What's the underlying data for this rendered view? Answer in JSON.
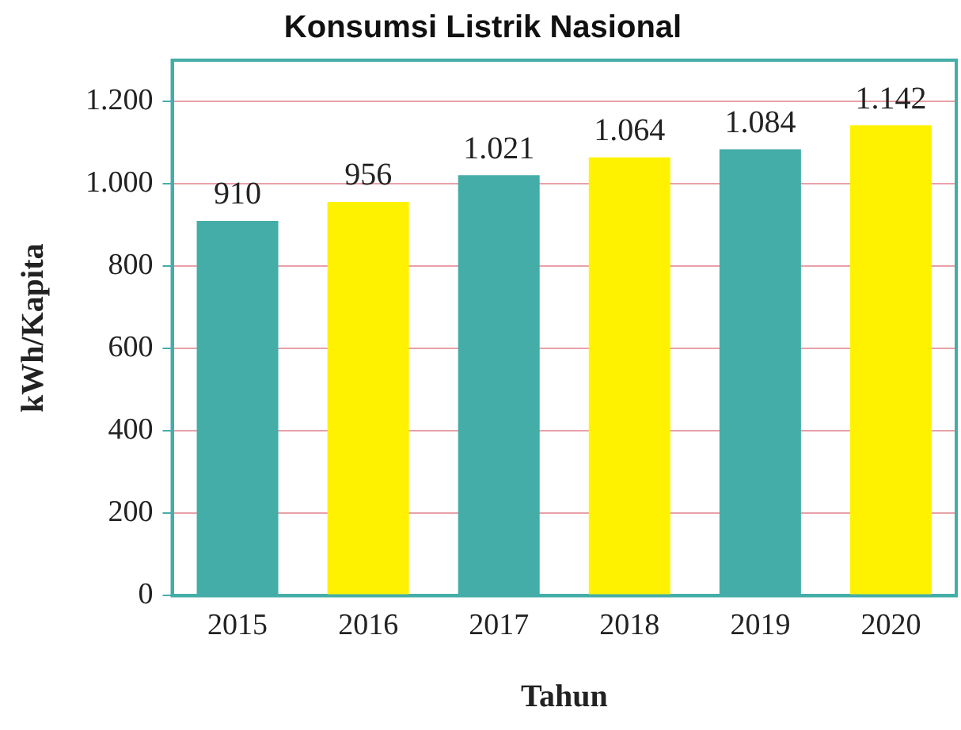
{
  "chart_data": {
    "type": "bar",
    "title": "Konsumsi Listrik Nasional",
    "xlabel": "Tahun",
    "ylabel": "kWh/Kapita",
    "categories": [
      "2015",
      "2016",
      "2017",
      "2018",
      "2019",
      "2020"
    ],
    "values": [
      910,
      956,
      1021,
      1064,
      1084,
      1142
    ],
    "colors": [
      "#45ada8",
      "#fff200",
      "#45ada8",
      "#fff200",
      "#45ada8",
      "#fff200"
    ],
    "value_labels": [
      "910",
      "956",
      "1.021",
      "1.064",
      "1.084",
      "1.142"
    ],
    "ylim": [
      0,
      1300
    ],
    "yticks": [
      0,
      200,
      400,
      600,
      800,
      {
        "value": 1000,
        "label": "1.000"
      },
      {
        "value": 1200,
        "label": "1.200"
      }
    ],
    "grid": "y",
    "legend": false
  }
}
